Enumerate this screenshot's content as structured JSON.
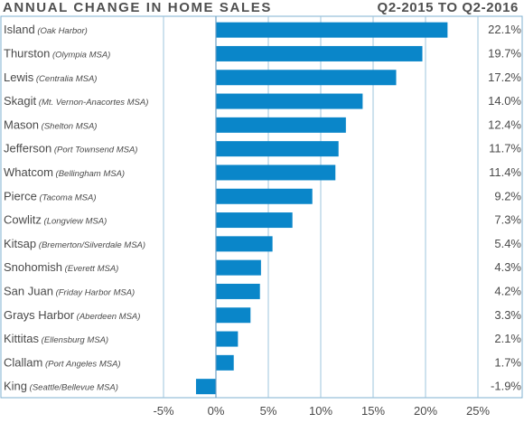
{
  "chart_data": {
    "type": "bar",
    "orientation": "horizontal",
    "title": "ANNUAL CHANGE IN HOME SALES",
    "subtitle": "Q2-2015 TO Q2-2016",
    "categories": [
      {
        "name": "Island",
        "sub": "(Oak Harbor)"
      },
      {
        "name": "Thurston",
        "sub": "(Olympia MSA)"
      },
      {
        "name": "Lewis",
        "sub": "(Centralia MSA)"
      },
      {
        "name": "Skagit",
        "sub": "(Mt. Vernon-Anacortes MSA)"
      },
      {
        "name": "Mason",
        "sub": "(Shelton MSA)"
      },
      {
        "name": "Jefferson",
        "sub": "(Port Townsend MSA)"
      },
      {
        "name": "Whatcom",
        "sub": "(Bellingham MSA)"
      },
      {
        "name": "Pierce",
        "sub": "(Tacoma MSA)"
      },
      {
        "name": "Cowlitz",
        "sub": "(Longview MSA)"
      },
      {
        "name": "Kitsap",
        "sub": "(Bremerton/Silverdale MSA)"
      },
      {
        "name": "Snohomish",
        "sub": "(Everett MSA)"
      },
      {
        "name": "San Juan",
        "sub": "(Friday Harbor MSA)"
      },
      {
        "name": "Grays Harbor",
        "sub": "(Aberdeen MSA)"
      },
      {
        "name": "Kittitas",
        "sub": "(Ellensburg MSA)"
      },
      {
        "name": "Clallam",
        "sub": "(Port Angeles MSA)"
      },
      {
        "name": "King",
        "sub": "(Seattle/Bellevue MSA)"
      }
    ],
    "values": [
      22.1,
      19.7,
      17.2,
      14.0,
      12.4,
      11.7,
      11.4,
      9.2,
      7.3,
      5.4,
      4.3,
      4.2,
      3.3,
      2.1,
      1.7,
      -1.9
    ],
    "value_labels": [
      "22.1%",
      "19.7%",
      "17.2%",
      "14.0%",
      "12.4%",
      "11.7%",
      "11.4%",
      "9.2%",
      "7.3%",
      "5.4%",
      "4.3%",
      "4.2%",
      "3.3%",
      "2.1%",
      "1.7%",
      "-1.9%"
    ],
    "xlim": [
      -10,
      25
    ],
    "x_ticks": [
      -5,
      0,
      5,
      10,
      15,
      20,
      25
    ],
    "x_tick_labels": [
      "-5%",
      "0%",
      "5%",
      "10%",
      "15%",
      "20%",
      "25%"
    ],
    "grid": true,
    "bar_color": "#0a86c9",
    "grid_color": "#9ec4dc",
    "border_color": "#7fb0d0"
  }
}
